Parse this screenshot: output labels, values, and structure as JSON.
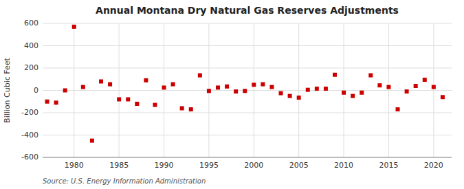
{
  "chart_data": {
    "type": "scatter",
    "title": "Annual Montana Dry Natural Gas Reserves Adjustments",
    "ylabel": "Billion Cubic Feet",
    "annotations": [
      "Source: U.S. Energy Information Administration"
    ],
    "x": [
      1977,
      1978,
      1979,
      1980,
      1981,
      1982,
      1983,
      1984,
      1985,
      1986,
      1987,
      1988,
      1989,
      1990,
      1991,
      1992,
      1993,
      1994,
      1995,
      1996,
      1997,
      1998,
      1999,
      2000,
      2001,
      2002,
      2003,
      2004,
      2005,
      2006,
      2007,
      2008,
      2009,
      2010,
      2011,
      2012,
      2013,
      2014,
      2015,
      2016,
      2017,
      2018,
      2019,
      2020,
      2021
    ],
    "values": [
      -100,
      -110,
      0,
      570,
      30,
      -450,
      80,
      55,
      -80,
      -80,
      -120,
      90,
      -130,
      25,
      55,
      -160,
      -170,
      135,
      -5,
      25,
      35,
      -10,
      -5,
      50,
      55,
      30,
      -25,
      -50,
      -65,
      5,
      15,
      15,
      140,
      -20,
      -50,
      -20,
      135,
      45,
      30,
      -170,
      -10,
      40,
      95,
      30,
      -60
    ],
    "color": "#cc0000",
    "marker": "square",
    "xlim": [
      1976.5,
      2022
    ],
    "ylim": [
      -600,
      600
    ],
    "xticks": [
      1980,
      1985,
      1990,
      1995,
      2000,
      2005,
      2010,
      2015,
      2020
    ],
    "yticks": [
      -600,
      -400,
      -200,
      0,
      200,
      400,
      600
    ],
    "grid": true
  }
}
